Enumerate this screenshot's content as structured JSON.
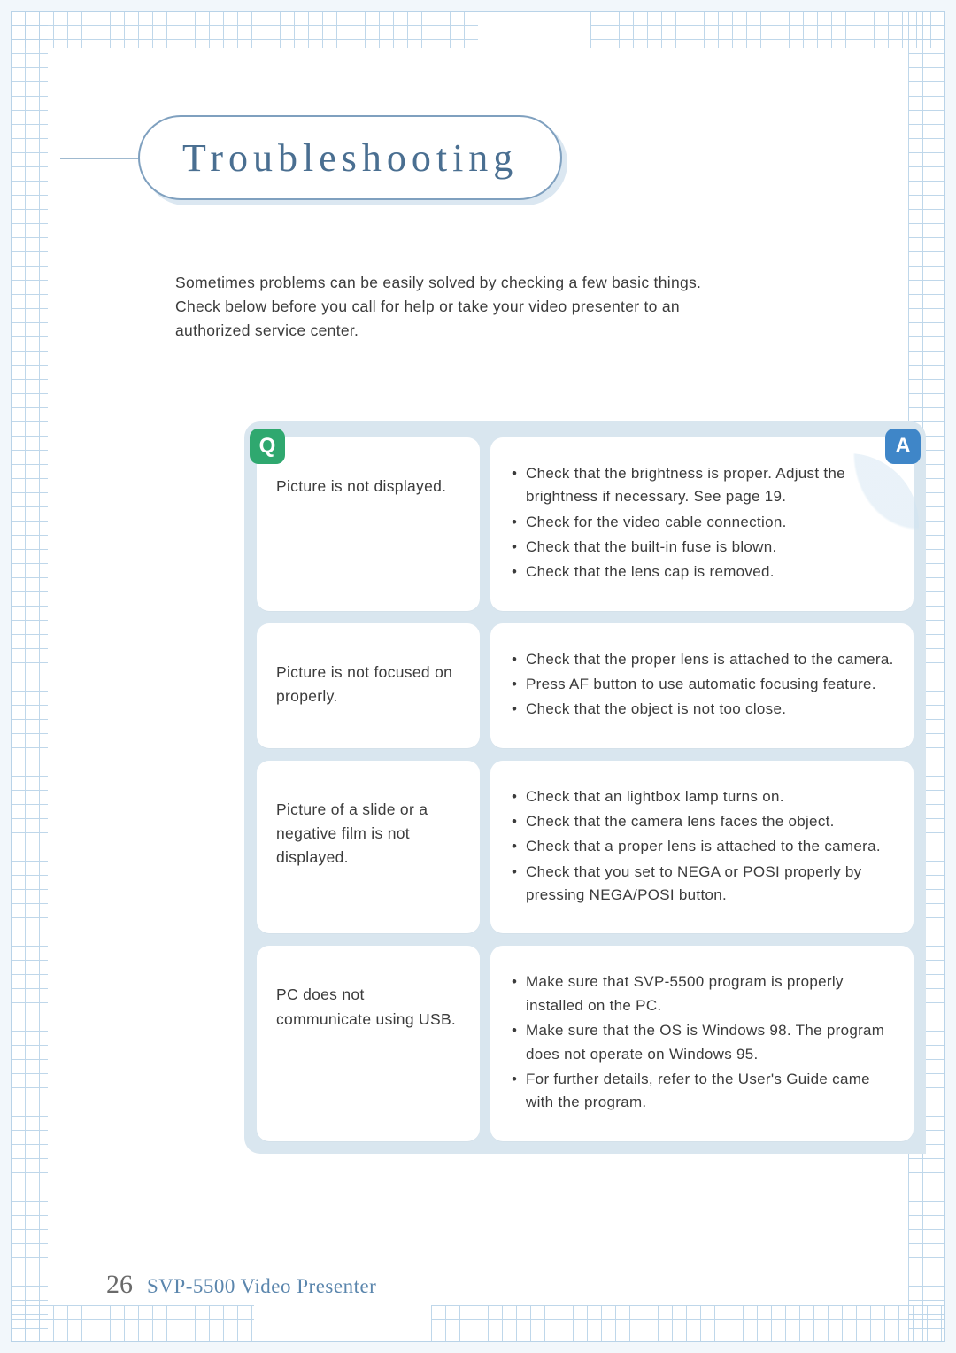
{
  "colors": {
    "page_bg": "#ffffff",
    "frame_bg": "#f2f7fb",
    "grid_line": "#b9d3e8",
    "title_text": "#4a6f91",
    "title_border": "#7fa0bf",
    "title_shadow": "#dbe7f1",
    "body_text": "#3b3b3b",
    "panel_bg": "#d9e6ef",
    "card_bg": "#ffffff",
    "badge_q": "#2fa86f",
    "badge_a": "#3f86c8",
    "footer_num": "#6a6a6a",
    "footer_name": "#5b86ad"
  },
  "title": "Troubleshooting",
  "intro": "Sometimes problems can be easily solved by checking a few basic things. Check below before you call for help or take your video presenter to an authorized service center.",
  "badges": {
    "q": "Q",
    "a": "A"
  },
  "qa": [
    {
      "q": "Picture is not displayed.",
      "a": [
        "Check that the brightness is proper. Adjust the brightness if necessary. See page 19.",
        "Check for the video cable connection.",
        "Check that the built-in fuse is blown.",
        "Check that the lens cap is removed."
      ]
    },
    {
      "q": "Picture is not focused on properly.",
      "a": [
        "Check that the proper lens is attached to the camera.",
        "Press AF button to use automatic focusing feature.",
        "Check that the object is not too close."
      ]
    },
    {
      "q": "Picture of a slide or a negative film is not displayed.",
      "a": [
        "Check that an lightbox lamp turns on.",
        "Check that the camera lens faces the object.",
        "Check that a proper lens is attached to the camera.",
        "Check that you set to NEGA or POSI properly by pressing NEGA/POSI button."
      ]
    },
    {
      "q": "PC does not communicate using USB.",
      "a": [
        "Make sure that SVP-5500 program is properly installed on the PC.",
        "Make sure that the OS is Windows 98. The program does not operate on Windows 95.",
        "For further details, refer to the User's Guide came with the program."
      ]
    }
  ],
  "footer": {
    "page": "26",
    "product": "SVP-5500 Video Presenter"
  }
}
